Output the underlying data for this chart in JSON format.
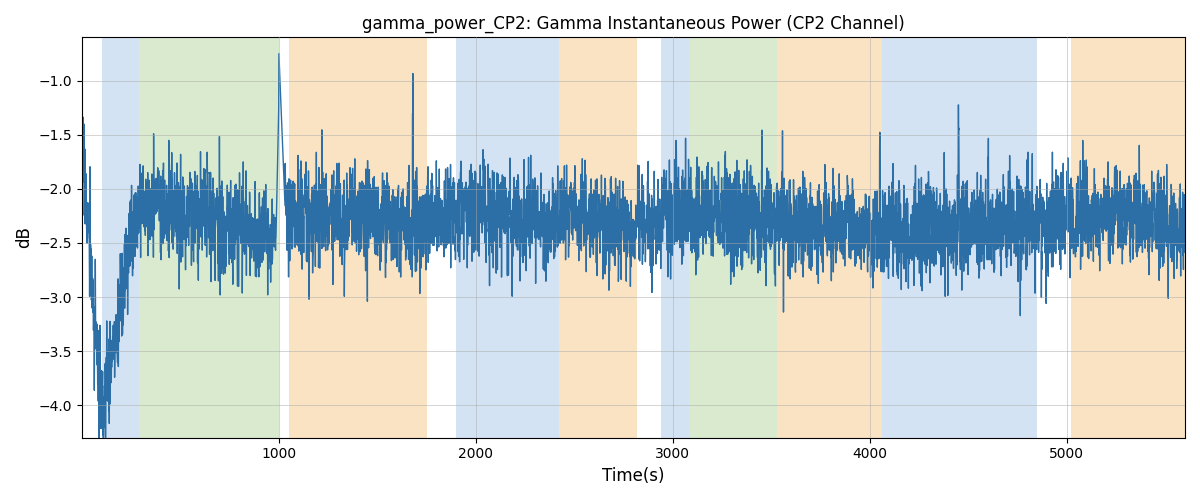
{
  "title": "gamma_power_CP2: Gamma Instantaneous Power (CP2 Channel)",
  "xlabel": "Time(s)",
  "ylabel": "dB",
  "xlim": [
    0,
    5600
  ],
  "ylim": [
    -4.3,
    -0.6
  ],
  "line_color": "#2c6fa6",
  "line_width": 1.0,
  "bg_color": "#ffffff",
  "grid_color": "#aaaaaa",
  "background_bands": [
    {
      "xmin": 100,
      "xmax": 290,
      "color": "#aac8e8",
      "alpha": 0.5
    },
    {
      "xmin": 290,
      "xmax": 1000,
      "color": "#a0cc88",
      "alpha": 0.4
    },
    {
      "xmin": 1050,
      "xmax": 1750,
      "color": "#f5c888",
      "alpha": 0.5
    },
    {
      "xmin": 1900,
      "xmax": 2420,
      "color": "#aac8e8",
      "alpha": 0.5
    },
    {
      "xmin": 2420,
      "xmax": 2820,
      "color": "#f5c888",
      "alpha": 0.5
    },
    {
      "xmin": 2940,
      "xmax": 3080,
      "color": "#aac8e8",
      "alpha": 0.5
    },
    {
      "xmin": 3080,
      "xmax": 3530,
      "color": "#a0cc88",
      "alpha": 0.4
    },
    {
      "xmin": 3530,
      "xmax": 4060,
      "color": "#f5c888",
      "alpha": 0.5
    },
    {
      "xmin": 4060,
      "xmax": 4850,
      "color": "#aac8e8",
      "alpha": 0.5
    },
    {
      "xmin": 5020,
      "xmax": 5600,
      "color": "#f5c888",
      "alpha": 0.5
    }
  ],
  "figsize": [
    12,
    5
  ],
  "dpi": 100,
  "seed": 17,
  "n_points": 5600
}
